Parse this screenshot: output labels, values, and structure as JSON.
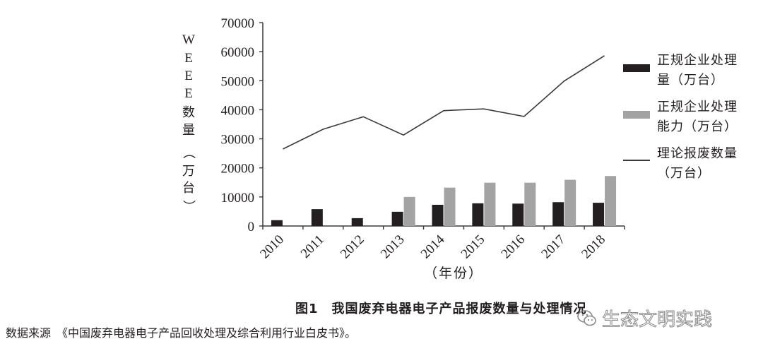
{
  "chart_data": {
    "type": "bar",
    "title": "图1　我国废弃电器电子产品报废数量与处理情况",
    "xlabel": "（年份）",
    "ylabel": "WEEE数量（万台）",
    "ylim": [
      0,
      70000
    ],
    "yticks": [
      0,
      10000,
      20000,
      30000,
      40000,
      50000,
      60000,
      70000
    ],
    "grid": false,
    "legend_position": "right",
    "categories": [
      "2010",
      "2011",
      "2012",
      "2013",
      "2014",
      "2015",
      "2016",
      "2017",
      "2018"
    ],
    "series": [
      {
        "name": "正规企业处理量（万台）",
        "type": "bar",
        "color": "#231f20",
        "values": [
          2000,
          5800,
          2700,
          4900,
          7300,
          7800,
          7700,
          8200,
          8000
        ]
      },
      {
        "name": "正规企业处理能力（万台）",
        "type": "bar",
        "color": "#a3a3a3",
        "values": [
          null,
          null,
          null,
          10000,
          13200,
          14900,
          14900,
          15900,
          17200
        ]
      },
      {
        "name": "理论报废数量（万台）",
        "type": "line",
        "color": "#3a3a3a",
        "values": [
          26500,
          33300,
          37600,
          31300,
          39700,
          40300,
          37700,
          49900,
          58600
        ]
      }
    ]
  },
  "yaxis": {
    "label_chars": [
      "W",
      "E",
      "E",
      "E",
      "数",
      "量",
      "（",
      "万",
      "台",
      "）"
    ],
    "tick_labels": [
      "0",
      "10000",
      "20000",
      "30000",
      "40000",
      "50000",
      "60000",
      "70000"
    ]
  },
  "legend": {
    "items": [
      {
        "line1": "正规企业处理",
        "line2": "量（万台）"
      },
      {
        "line1": "正规企业处理",
        "line2": "能力（万台）"
      },
      {
        "line1": "理论报废数量",
        "line2": "（万台）"
      }
    ]
  },
  "xaxis": {
    "label": "（年份）"
  },
  "caption": "图1　我国废弃电器电子产品报废数量与处理情况",
  "source": "数据来源　《中国废弃电器电子产品回收处理及综合利用行业白皮书》。",
  "watermark": "生态文明实践"
}
